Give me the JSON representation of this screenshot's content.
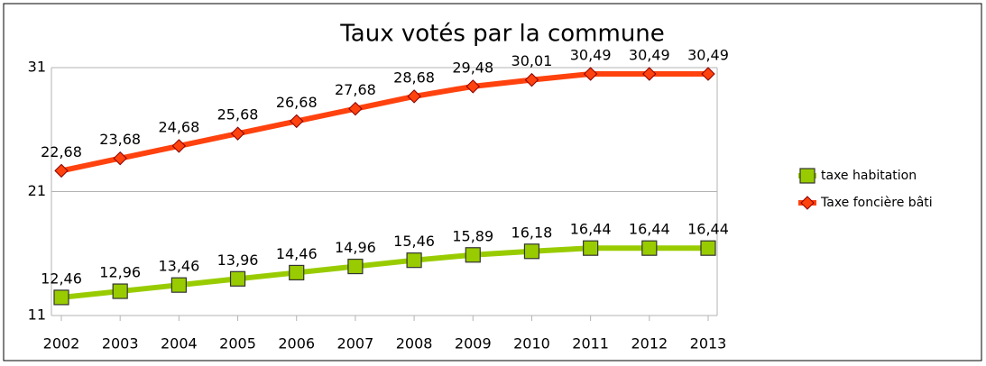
{
  "chart_data": {
    "type": "line",
    "title": "Taux votés par la commune",
    "categories": [
      "2002",
      "2003",
      "2004",
      "2005",
      "2006",
      "2007",
      "2008",
      "2009",
      "2010",
      "2011",
      "2012",
      "2013"
    ],
    "series": [
      {
        "name": "taxe habitation",
        "color": "#99cc00",
        "marker": "square",
        "values": [
          12.46,
          12.96,
          13.46,
          13.96,
          14.46,
          14.96,
          15.46,
          15.89,
          16.18,
          16.44,
          16.44,
          16.44
        ],
        "value_labels": [
          "12,46",
          "12,96",
          "13,46",
          "13,96",
          "14,46",
          "14,96",
          "15,46",
          "15,89",
          "16,18",
          "16,44",
          "16,44",
          "16,44"
        ]
      },
      {
        "name": "Taxe foncière bâti",
        "color": "#ff420e",
        "marker": "diamond",
        "values": [
          22.68,
          23.68,
          24.68,
          25.68,
          26.68,
          27.68,
          28.68,
          29.48,
          30.01,
          30.49,
          30.49,
          30.49
        ],
        "value_labels": [
          "22,68",
          "23,68",
          "24,68",
          "25,68",
          "26,68",
          "27,68",
          "28,68",
          "29,48",
          "30,01",
          "30,49",
          "30,49",
          "30,49"
        ]
      }
    ],
    "ylim": [
      11,
      31
    ],
    "yticks": [
      11,
      21,
      31
    ],
    "grid": true,
    "legend": "right"
  }
}
